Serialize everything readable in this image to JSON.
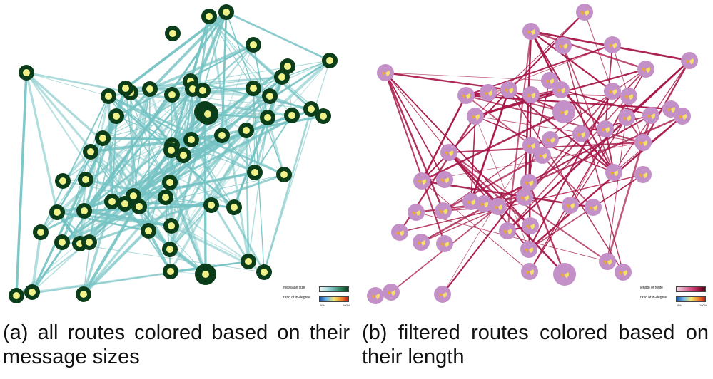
{
  "panel_a": {
    "caption": "(a) all routes colored based on their message sizes",
    "legend": {
      "row1_label": "message size",
      "row2_label": "ratio of in-degree",
      "tick_left": "0%",
      "tick_right": "100%"
    },
    "colors": {
      "node_ring": "#0b3d1a",
      "node_core": "#f1f28a",
      "edge": "#74c2c3"
    }
  },
  "panel_b": {
    "caption": "(b) filtered routes colored based on their length",
    "legend": {
      "row1_label": "length of route",
      "row2_label": "ratio of in-degree",
      "tick_left": "0%",
      "tick_right": "100%"
    },
    "colors": {
      "node_ring": "#c490c8",
      "node_core": "#f5e06a",
      "edge": "#a8184a"
    }
  }
}
